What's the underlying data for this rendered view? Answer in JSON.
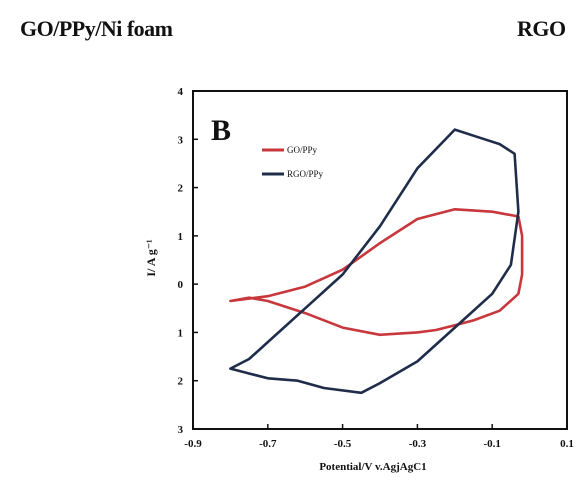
{
  "header": {
    "left_title": "GO/PPy/Ni foam",
    "right_title": "RGO"
  },
  "chart_data": {
    "type": "line",
    "panel_label": "B",
    "xlabel": "Potential/V v.AgjAgC1",
    "ylabel": "I/ A g⁻¹",
    "xlim": [
      -0.9,
      0.1
    ],
    "ylim": [
      -3,
      4
    ],
    "x_ticks": [
      -0.9,
      -0.7,
      -0.5,
      -0.3,
      -0.1,
      0.1
    ],
    "x_tick_labels": [
      "-0.9",
      "-0.7",
      "-0.5",
      "-0.3",
      "-0.1",
      "0.1"
    ],
    "y_ticks": [
      4,
      3,
      2,
      1,
      0,
      -1,
      -2,
      -3
    ],
    "y_tick_labels": [
      "4",
      "3",
      "2",
      "1",
      "0",
      "1",
      "2",
      "3"
    ],
    "grid": false,
    "legend_position": "top-left",
    "series": [
      {
        "name": "GO/PPy",
        "color": "#c8373b",
        "x": [
          -0.8,
          -0.7,
          -0.6,
          -0.5,
          -0.4,
          -0.3,
          -0.2,
          -0.1,
          -0.03,
          -0.02,
          -0.02,
          -0.03,
          -0.08,
          -0.15,
          -0.2,
          -0.25,
          -0.3,
          -0.4,
          -0.5,
          -0.6,
          -0.7,
          -0.75,
          -0.8
        ],
        "y": [
          -0.35,
          -0.25,
          -0.05,
          0.3,
          0.85,
          1.35,
          1.55,
          1.5,
          1.4,
          1.0,
          0.2,
          -0.2,
          -0.55,
          -0.75,
          -0.85,
          -0.95,
          -1.0,
          -1.05,
          -0.9,
          -0.6,
          -0.35,
          -0.28,
          -0.35
        ]
      },
      {
        "name": "RGO/PPy",
        "color": "#1f2d4a",
        "x": [
          -0.8,
          -0.75,
          -0.7,
          -0.6,
          -0.5,
          -0.4,
          -0.3,
          -0.2,
          -0.12,
          -0.08,
          -0.04,
          -0.03,
          -0.05,
          -0.1,
          -0.2,
          -0.3,
          -0.4,
          -0.45,
          -0.55,
          -0.62,
          -0.7,
          -0.75,
          -0.8
        ],
        "y": [
          -1.75,
          -1.55,
          -1.2,
          -0.5,
          0.2,
          1.2,
          2.4,
          3.2,
          3.0,
          2.9,
          2.7,
          1.5,
          0.4,
          -0.2,
          -0.9,
          -1.6,
          -2.05,
          -2.25,
          -2.15,
          -2.0,
          -1.95,
          -1.85,
          -1.75
        ]
      }
    ]
  }
}
